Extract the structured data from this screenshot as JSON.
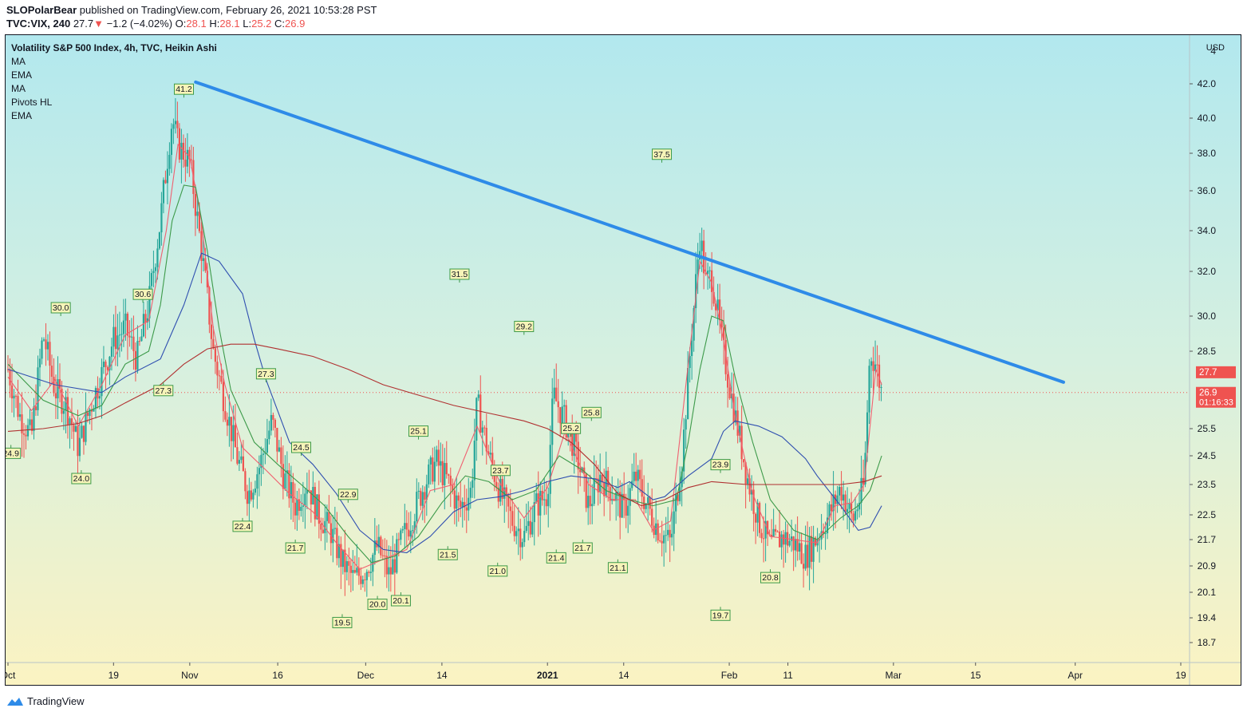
{
  "header": {
    "author": "SLOPolarBear",
    "published": " published on TradingView.com, February 26, 2021 10:53:28 PST",
    "symbol": "TVC:VIX, 240",
    "last": "27.7",
    "change": "−1.2 (−4.02%)",
    "o_label": "O:",
    "o_val": "28.1",
    "h_label": "H:",
    "h_val": "28.1",
    "l_label": "L:",
    "l_val": "25.2",
    "c_label": "C:",
    "c_val": "26.9"
  },
  "legend": {
    "title": "Volatility S&P 500 Index, 4h, TVC, Heikin Ashi",
    "indicators": [
      "MA",
      "EMA",
      "MA",
      "Pivots HL",
      "EMA"
    ]
  },
  "footer": {
    "brand": "TradingView"
  },
  "colors": {
    "up": "#26a69a",
    "down": "#ef5350",
    "trend": "#2e8be8",
    "ma_fast": "#f06070",
    "ma_mid": "#3d9a4a",
    "ma_slow": "#2f4fb0",
    "ma_long": "#b03030"
  },
  "chart_data": {
    "type": "candlestick",
    "price_unit": "USD",
    "y_ticks": [
      18.7,
      19.4,
      20.1,
      20.9,
      21.7,
      22.5,
      23.5,
      24.5,
      25.5,
      28.5,
      30.0,
      32.0,
      34.0,
      36.0,
      38.0,
      40.0,
      42.0
    ],
    "y_top_partial": "4",
    "x_labels": [
      {
        "label": "Oct",
        "d": 0
      },
      {
        "label": "19",
        "d": 18
      },
      {
        "label": "Nov",
        "d": 31
      },
      {
        "label": "16",
        "d": 46
      },
      {
        "label": "Dec",
        "d": 61
      },
      {
        "label": "14",
        "d": 74
      },
      {
        "label": "2021",
        "d": 92,
        "bold": true
      },
      {
        "label": "14",
        "d": 105
      },
      {
        "label": "Feb",
        "d": 123
      },
      {
        "label": "11",
        "d": 133
      },
      {
        "label": "Mar",
        "d": 151
      },
      {
        "label": "15",
        "d": 165
      },
      {
        "label": "Apr",
        "d": 182
      },
      {
        "label": "19",
        "d": 200
      }
    ],
    "price_tags": [
      {
        "value": "27.7",
        "y": 27.7
      },
      {
        "value": "26.9",
        "sub": "01:16:33",
        "y": 26.9
      }
    ],
    "last_close": 26.9,
    "ohlc_path": [
      [
        0,
        27.8
      ],
      [
        2,
        26.0
      ],
      [
        4,
        25.2
      ],
      [
        6,
        29.2
      ],
      [
        8,
        27.0
      ],
      [
        10,
        26.4
      ],
      [
        12,
        24.8
      ],
      [
        14,
        26.3
      ],
      [
        16,
        27.6
      ],
      [
        18,
        29.0
      ],
      [
        20,
        29.5
      ],
      [
        22,
        28.2
      ],
      [
        24,
        30.5
      ],
      [
        26,
        34.5
      ],
      [
        28,
        40.0
      ],
      [
        29,
        38.5
      ],
      [
        31,
        37.5
      ],
      [
        33,
        33.0
      ],
      [
        35,
        28.5
      ],
      [
        37,
        26.5
      ],
      [
        39,
        24.5
      ],
      [
        41,
        23.2
      ],
      [
        43,
        24.2
      ],
      [
        45,
        25.8
      ],
      [
        47,
        23.8
      ],
      [
        49,
        22.8
      ],
      [
        51,
        23.6
      ],
      [
        53,
        22.5
      ],
      [
        55,
        22.0
      ],
      [
        57,
        21.0
      ],
      [
        59,
        20.5
      ],
      [
        61,
        20.8
      ],
      [
        63,
        21.5
      ],
      [
        65,
        20.6
      ],
      [
        67,
        21.6
      ],
      [
        69,
        22.5
      ],
      [
        71,
        23.5
      ],
      [
        73,
        24.3
      ],
      [
        75,
        23.6
      ],
      [
        77,
        22.7
      ],
      [
        79,
        23.3
      ],
      [
        80,
        26.5
      ],
      [
        82,
        24.5
      ],
      [
        84,
        23.2
      ],
      [
        86,
        22.3
      ],
      [
        88,
        21.8
      ],
      [
        90,
        22.8
      ],
      [
        92,
        23.2
      ],
      [
        93,
        26.8
      ],
      [
        95,
        25.8
      ],
      [
        97,
        24.5
      ],
      [
        99,
        22.8
      ],
      [
        101,
        23.8
      ],
      [
        103,
        23.3
      ],
      [
        105,
        22.6
      ],
      [
        107,
        23.8
      ],
      [
        109,
        22.8
      ],
      [
        111,
        22.0
      ],
      [
        113,
        21.6
      ],
      [
        115,
        24.5
      ],
      [
        117,
        30.5
      ],
      [
        118,
        33.8
      ],
      [
        119,
        31.5
      ],
      [
        120,
        31.8
      ],
      [
        122,
        28.5
      ],
      [
        124,
        26.0
      ],
      [
        126,
        23.8
      ],
      [
        128,
        22.3
      ],
      [
        130,
        21.5
      ],
      [
        132,
        21.8
      ],
      [
        134,
        21.6
      ],
      [
        136,
        21.2
      ],
      [
        138,
        21.8
      ],
      [
        140,
        22.5
      ],
      [
        142,
        23.4
      ],
      [
        144,
        22.3
      ],
      [
        146,
        23.5
      ],
      [
        147,
        28.5
      ],
      [
        148,
        28.0
      ],
      [
        149,
        26.9
      ]
    ],
    "pivots": [
      {
        "label": "24.9",
        "d": 0.5,
        "y": 24.9,
        "kind": "low"
      },
      {
        "label": "30.0",
        "d": 9,
        "y": 30.0,
        "kind": "high"
      },
      {
        "label": "24.0",
        "d": 12.5,
        "y": 24.0,
        "kind": "low"
      },
      {
        "label": "30.6",
        "d": 23,
        "y": 30.6,
        "kind": "high"
      },
      {
        "label": "27.3",
        "d": 26.5,
        "y": 27.3,
        "kind": "low"
      },
      {
        "label": "41.2",
        "d": 30,
        "y": 41.2,
        "kind": "high"
      },
      {
        "label": "27.3",
        "d": 44,
        "y": 27.3,
        "kind": "high"
      },
      {
        "label": "22.4",
        "d": 40,
        "y": 22.4,
        "kind": "low"
      },
      {
        "label": "24.5",
        "d": 50,
        "y": 24.5,
        "kind": "high"
      },
      {
        "label": "21.7",
        "d": 49,
        "y": 21.7,
        "kind": "low"
      },
      {
        "label": "22.9",
        "d": 58,
        "y": 22.9,
        "kind": "high"
      },
      {
        "label": "19.5",
        "d": 57,
        "y": 19.5,
        "kind": "low"
      },
      {
        "label": "20.0",
        "d": 63,
        "y": 20.0,
        "kind": "low"
      },
      {
        "label": "20.1",
        "d": 67,
        "y": 20.1,
        "kind": "low"
      },
      {
        "label": "25.1",
        "d": 70,
        "y": 25.1,
        "kind": "high"
      },
      {
        "label": "21.5",
        "d": 75,
        "y": 21.5,
        "kind": "low"
      },
      {
        "label": "31.5",
        "d": 77,
        "y": 31.5,
        "kind": "high"
      },
      {
        "label": "23.7",
        "d": 84,
        "y": 23.7,
        "kind": "high"
      },
      {
        "label": "21.0",
        "d": 83.5,
        "y": 21.0,
        "kind": "low"
      },
      {
        "label": "29.2",
        "d": 88,
        "y": 29.2,
        "kind": "high"
      },
      {
        "label": "21.4",
        "d": 93.5,
        "y": 21.4,
        "kind": "low"
      },
      {
        "label": "25.2",
        "d": 96,
        "y": 25.2,
        "kind": "high"
      },
      {
        "label": "21.7",
        "d": 98,
        "y": 21.7,
        "kind": "low"
      },
      {
        "label": "25.8",
        "d": 99.5,
        "y": 25.8,
        "kind": "high"
      },
      {
        "label": "21.1",
        "d": 104,
        "y": 21.1,
        "kind": "low"
      },
      {
        "label": "37.5",
        "d": 111.5,
        "y": 37.5,
        "kind": "high"
      },
      {
        "label": "23.9",
        "d": 121.5,
        "y": 23.9,
        "kind": "high"
      },
      {
        "label": "19.7",
        "d": 121.5,
        "y": 19.7,
        "kind": "low"
      },
      {
        "label": "20.8",
        "d": 130,
        "y": 20.8,
        "kind": "low"
      }
    ],
    "trend_line": {
      "from": [
        32,
        42.1
      ],
      "to": [
        180,
        27.3
      ]
    },
    "moving_averages": {
      "ma_fast": [
        [
          0,
          27.5
        ],
        [
          4,
          26.2
        ],
        [
          8,
          27.4
        ],
        [
          12,
          25.6
        ],
        [
          16,
          27.2
        ],
        [
          20,
          29.2
        ],
        [
          24,
          29.8
        ],
        [
          27,
          34.0
        ],
        [
          29,
          38.5
        ],
        [
          31,
          37.8
        ],
        [
          33,
          34.5
        ],
        [
          35,
          29.5
        ],
        [
          37,
          27.2
        ],
        [
          40,
          24.8
        ],
        [
          44,
          24.0
        ],
        [
          48,
          23.2
        ],
        [
          52,
          22.6
        ],
        [
          56,
          21.6
        ],
        [
          60,
          20.8
        ],
        [
          64,
          21.1
        ],
        [
          68,
          21.4
        ],
        [
          72,
          23.3
        ],
        [
          76,
          23.5
        ],
        [
          80,
          25.6
        ],
        [
          84,
          23.5
        ],
        [
          88,
          22.4
        ],
        [
          92,
          23.4
        ],
        [
          95,
          25.4
        ],
        [
          99,
          23.5
        ],
        [
          103,
          23.0
        ],
        [
          107,
          23.0
        ],
        [
          110,
          22.0
        ],
        [
          113,
          22.3
        ],
        [
          116,
          28.0
        ],
        [
          118,
          32.5
        ],
        [
          120,
          31.5
        ],
        [
          122,
          29.0
        ],
        [
          124,
          26.0
        ],
        [
          127,
          23.2
        ],
        [
          130,
          21.8
        ],
        [
          134,
          21.7
        ],
        [
          138,
          21.6
        ],
        [
          141,
          22.8
        ],
        [
          144,
          22.9
        ],
        [
          146,
          23.5
        ],
        [
          148,
          27.8
        ],
        [
          149,
          27.2
        ]
      ],
      "ma_mid": [
        [
          0,
          28.0
        ],
        [
          6,
          26.6
        ],
        [
          12,
          26.0
        ],
        [
          16,
          26.4
        ],
        [
          20,
          28.0
        ],
        [
          24,
          28.5
        ],
        [
          26,
          30.5
        ],
        [
          28,
          34.5
        ],
        [
          30,
          36.3
        ],
        [
          32,
          36.2
        ],
        [
          34,
          33.0
        ],
        [
          36,
          29.5
        ],
        [
          38,
          27.0
        ],
        [
          42,
          25.0
        ],
        [
          46,
          24.2
        ],
        [
          50,
          23.5
        ],
        [
          54,
          22.8
        ],
        [
          58,
          21.8
        ],
        [
          62,
          21.0
        ],
        [
          66,
          21.2
        ],
        [
          70,
          21.8
        ],
        [
          74,
          22.9
        ],
        [
          78,
          23.8
        ],
        [
          82,
          23.6
        ],
        [
          86,
          23.0
        ],
        [
          90,
          23.3
        ],
        [
          94,
          24.5
        ],
        [
          98,
          24.0
        ],
        [
          102,
          23.3
        ],
        [
          106,
          23.0
        ],
        [
          110,
          22.8
        ],
        [
          114,
          23.0
        ],
        [
          116,
          25.0
        ],
        [
          118,
          27.8
        ],
        [
          120,
          30.0
        ],
        [
          122,
          29.8
        ],
        [
          124,
          27.5
        ],
        [
          127,
          25.0
        ],
        [
          130,
          23.0
        ],
        [
          134,
          22.0
        ],
        [
          138,
          21.7
        ],
        [
          142,
          22.4
        ],
        [
          145,
          22.8
        ],
        [
          147,
          23.3
        ],
        [
          149,
          24.5
        ]
      ],
      "ma_slow": [
        [
          0,
          27.8
        ],
        [
          8,
          27.2
        ],
        [
          16,
          26.9
        ],
        [
          20,
          27.5
        ],
        [
          26,
          28.2
        ],
        [
          30,
          30.5
        ],
        [
          33,
          32.9
        ],
        [
          36,
          32.5
        ],
        [
          40,
          31.0
        ],
        [
          42,
          29.0
        ],
        [
          44,
          27.4
        ],
        [
          48,
          25.0
        ],
        [
          52,
          24.2
        ],
        [
          56,
          23.2
        ],
        [
          60,
          22.0
        ],
        [
          64,
          21.4
        ],
        [
          68,
          21.3
        ],
        [
          72,
          21.8
        ],
        [
          76,
          22.6
        ],
        [
          80,
          23.0
        ],
        [
          84,
          23.1
        ],
        [
          88,
          23.3
        ],
        [
          92,
          23.6
        ],
        [
          96,
          23.8
        ],
        [
          100,
          23.7
        ],
        [
          104,
          23.4
        ],
        [
          106,
          23.6
        ],
        [
          110,
          23.0
        ],
        [
          112,
          23.1
        ],
        [
          116,
          23.8
        ],
        [
          120,
          24.4
        ],
        [
          122,
          25.4
        ],
        [
          124,
          25.8
        ],
        [
          128,
          25.6
        ],
        [
          132,
          25.2
        ],
        [
          136,
          24.4
        ],
        [
          138,
          23.8
        ],
        [
          142,
          22.8
        ],
        [
          145,
          22.0
        ],
        [
          147,
          22.1
        ],
        [
          149,
          22.8
        ]
      ],
      "ma_long": [
        [
          0,
          25.4
        ],
        [
          6,
          25.5
        ],
        [
          12,
          25.7
        ],
        [
          16,
          26.0
        ],
        [
          20,
          26.5
        ],
        [
          26,
          27.2
        ],
        [
          30,
          28.0
        ],
        [
          34,
          28.6
        ],
        [
          38,
          28.8
        ],
        [
          42,
          28.8
        ],
        [
          46,
          28.6
        ],
        [
          52,
          28.3
        ],
        [
          58,
          27.8
        ],
        [
          64,
          27.2
        ],
        [
          70,
          26.8
        ],
        [
          76,
          26.4
        ],
        [
          82,
          26.1
        ],
        [
          88,
          25.8
        ],
        [
          92,
          25.5
        ],
        [
          96,
          25.0
        ],
        [
          100,
          24.2
        ],
        [
          104,
          23.2
        ],
        [
          108,
          22.8
        ],
        [
          112,
          23.0
        ],
        [
          116,
          23.4
        ],
        [
          120,
          23.6
        ],
        [
          126,
          23.5
        ],
        [
          134,
          23.5
        ],
        [
          142,
          23.5
        ],
        [
          146,
          23.6
        ],
        [
          149,
          23.8
        ]
      ]
    }
  }
}
